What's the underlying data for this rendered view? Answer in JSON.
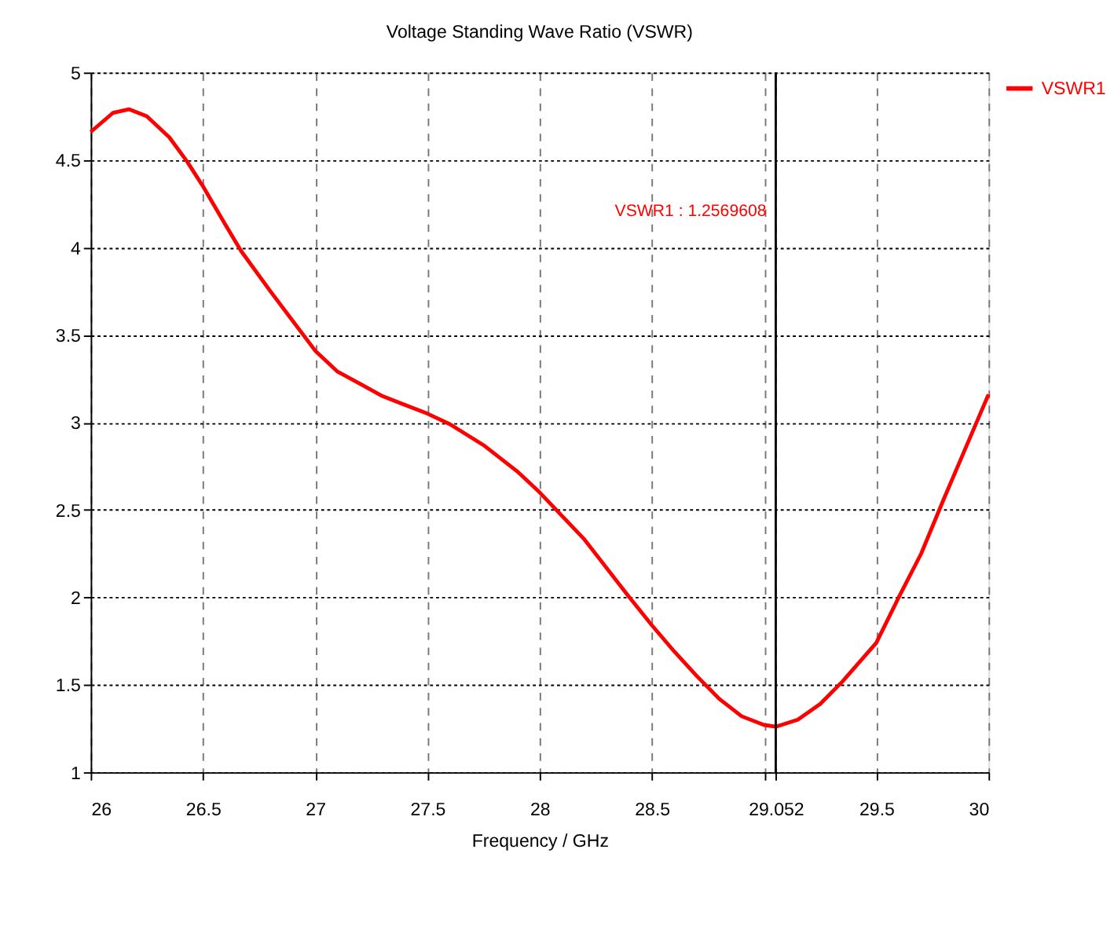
{
  "chart_data": {
    "type": "line",
    "title": "Voltage Standing Wave Ratio (VSWR)",
    "xlabel": "Frequency / GHz",
    "x": [
      26,
      26.1,
      26.17,
      26.25,
      26.35,
      26.43,
      26.5,
      26.6,
      26.67,
      26.8,
      26.9,
      27,
      27.1,
      27.2,
      27.3,
      27.5,
      27.6,
      27.75,
      27.9,
      28,
      28.2,
      28.4,
      28.5,
      28.6,
      28.7,
      28.8,
      28.9,
      29.0,
      29.052,
      29.15,
      29.25,
      29.35,
      29.5,
      29.6,
      29.7,
      29.8,
      29.9,
      30
    ],
    "series": [
      {
        "name": "VSWR1",
        "color": "#ff0000",
        "values": [
          4.66,
          4.77,
          4.79,
          4.75,
          4.63,
          4.49,
          4.35,
          4.13,
          3.98,
          3.75,
          3.58,
          3.41,
          3.29,
          3.22,
          3.15,
          3.05,
          2.99,
          2.87,
          2.72,
          2.6,
          2.33,
          2.0,
          1.84,
          1.69,
          1.55,
          1.42,
          1.32,
          1.27,
          1.26,
          1.3,
          1.39,
          1.52,
          1.74,
          2.0,
          2.25,
          2.56,
          2.86,
          3.16
        ]
      }
    ],
    "xlim": [
      26,
      30
    ],
    "xticks": [
      26,
      26.5,
      27,
      27.5,
      28,
      28.5,
      {
        "value": 29,
        "label": null
      },
      {
        "value": 29.052,
        "label": "29.052"
      },
      29.5,
      30
    ],
    "ylim": [
      1,
      5
    ],
    "yticks": [
      1,
      1.5,
      2,
      2.5,
      3,
      3.5,
      4,
      4.5,
      5
    ],
    "ref_lines": [
      {
        "axis": "x",
        "value": 29.052,
        "color": "#000000"
      }
    ],
    "annotations": [
      "VSWR1 : 1.2569608"
    ],
    "grid": true,
    "legend": "top right",
    "line_style": "solid",
    "marker": "none"
  }
}
